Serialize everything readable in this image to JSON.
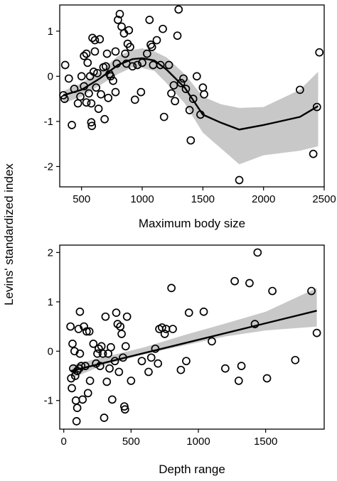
{
  "ylabel_shared": "Levins' standardized index",
  "chart_data": [
    {
      "type": "scatter",
      "xlabel": "Maximum body size",
      "ylabel": "Levins' standardized index",
      "xlim": [
        320,
        2500
      ],
      "ylim": [
        -2.45,
        1.58
      ],
      "xticks": [
        500,
        1000,
        1500,
        2000,
        2500
      ],
      "yticks": [
        -2,
        -1,
        0,
        1
      ],
      "points": [
        [
          350,
          -0.42
        ],
        [
          360,
          -0.5
        ],
        [
          365,
          0.25
        ],
        [
          395,
          -0.05
        ],
        [
          420,
          -1.08
        ],
        [
          440,
          -0.28
        ],
        [
          470,
          -0.6
        ],
        [
          490,
          -0.45
        ],
        [
          500,
          0.0
        ],
        [
          520,
          -0.22
        ],
        [
          520,
          0.45
        ],
        [
          540,
          0.5
        ],
        [
          540,
          -0.58
        ],
        [
          550,
          0.3
        ],
        [
          560,
          -0.38
        ],
        [
          570,
          0.0
        ],
        [
          580,
          -0.6
        ],
        [
          580,
          -1.02
        ],
        [
          585,
          -1.1
        ],
        [
          590,
          0.85
        ],
        [
          600,
          0.1
        ],
        [
          610,
          0.8
        ],
        [
          610,
          0.55
        ],
        [
          620,
          -0.25
        ],
        [
          630,
          0.07
        ],
        [
          640,
          -0.72
        ],
        [
          650,
          0.82
        ],
        [
          660,
          -0.4
        ],
        [
          680,
          0.2
        ],
        [
          690,
          -0.95
        ],
        [
          700,
          0.22
        ],
        [
          710,
          0.5
        ],
        [
          720,
          -0.48
        ],
        [
          730,
          0.05
        ],
        [
          740,
          0.0
        ],
        [
          760,
          -0.1
        ],
        [
          780,
          0.55
        ],
        [
          780,
          -0.35
        ],
        [
          790,
          0.28
        ],
        [
          800,
          1.25
        ],
        [
          815,
          1.38
        ],
        [
          830,
          1.1
        ],
        [
          850,
          0.95
        ],
        [
          860,
          0.5
        ],
        [
          870,
          0.28
        ],
        [
          880,
          0.72
        ],
        [
          890,
          1.02
        ],
        [
          900,
          0.65
        ],
        [
          920,
          0.22
        ],
        [
          940,
          -0.52
        ],
        [
          960,
          0.25
        ],
        [
          990,
          -0.35
        ],
        [
          1000,
          0.3
        ],
        [
          1040,
          0.5
        ],
        [
          1060,
          1.25
        ],
        [
          1070,
          0.7
        ],
        [
          1080,
          0.65
        ],
        [
          1090,
          0.25
        ],
        [
          1120,
          0.8
        ],
        [
          1150,
          0.25
        ],
        [
          1170,
          1.05
        ],
        [
          1180,
          -0.9
        ],
        [
          1220,
          0.25
        ],
        [
          1240,
          -0.38
        ],
        [
          1260,
          -0.2
        ],
        [
          1270,
          -0.55
        ],
        [
          1290,
          0.9
        ],
        [
          1300,
          1.48
        ],
        [
          1320,
          -0.15
        ],
        [
          1340,
          -0.05
        ],
        [
          1360,
          -0.28
        ],
        [
          1390,
          -0.75
        ],
        [
          1400,
          -1.42
        ],
        [
          1420,
          -0.5
        ],
        [
          1450,
          0.0
        ],
        [
          1480,
          -0.85
        ],
        [
          1500,
          -0.25
        ],
        [
          1510,
          -0.4
        ],
        [
          1800,
          -2.3
        ],
        [
          2300,
          -0.3
        ],
        [
          2410,
          -1.72
        ],
        [
          2440,
          -0.68
        ],
        [
          2460,
          0.53
        ]
      ],
      "trend": [
        [
          350,
          -0.42
        ],
        [
          500,
          -0.3
        ],
        [
          650,
          -0.05
        ],
        [
          800,
          0.25
        ],
        [
          920,
          0.38
        ],
        [
          1000,
          0.4
        ],
        [
          1100,
          0.35
        ],
        [
          1200,
          0.15
        ],
        [
          1350,
          -0.25
        ],
        [
          1500,
          -0.85
        ],
        [
          1650,
          -1.03
        ],
        [
          1800,
          -1.18
        ],
        [
          2000,
          -1.08
        ],
        [
          2300,
          -0.9
        ],
        [
          2450,
          -0.66
        ]
      ],
      "band_upper": [
        [
          350,
          -0.33
        ],
        [
          500,
          -0.15
        ],
        [
          650,
          0.1
        ],
        [
          800,
          0.45
        ],
        [
          920,
          0.58
        ],
        [
          1000,
          0.62
        ],
        [
          1100,
          0.55
        ],
        [
          1200,
          0.42
        ],
        [
          1350,
          0.05
        ],
        [
          1500,
          -0.45
        ],
        [
          1650,
          -0.62
        ],
        [
          1800,
          -0.7
        ],
        [
          2000,
          -0.68
        ],
        [
          2300,
          -0.3
        ],
        [
          2450,
          0.1
        ]
      ],
      "band_lower": [
        [
          350,
          -0.6
        ],
        [
          500,
          -0.45
        ],
        [
          650,
          -0.2
        ],
        [
          800,
          0.05
        ],
        [
          920,
          0.2
        ],
        [
          1000,
          0.18
        ],
        [
          1100,
          0.12
        ],
        [
          1200,
          -0.15
        ],
        [
          1350,
          -0.6
        ],
        [
          1500,
          -1.25
        ],
        [
          1650,
          -1.6
        ],
        [
          1800,
          -1.95
        ],
        [
          2000,
          -1.75
        ],
        [
          2300,
          -1.65
        ],
        [
          2450,
          -1.55
        ]
      ]
    },
    {
      "type": "scatter",
      "xlabel": "Depth range",
      "ylabel": "Levins' standardized index",
      "xlim": [
        -30,
        1935
      ],
      "ylim": [
        -1.58,
        2.15
      ],
      "xticks": [
        0,
        500,
        1000,
        1500
      ],
      "yticks": [
        -1,
        0,
        1,
        2
      ],
      "points": [
        [
          50,
          0.5
        ],
        [
          55,
          -0.55
        ],
        [
          60,
          -0.75
        ],
        [
          65,
          0.15
        ],
        [
          70,
          -0.35
        ],
        [
          80,
          0.0
        ],
        [
          85,
          -0.5
        ],
        [
          90,
          -1.0
        ],
        [
          95,
          -1.42
        ],
        [
          100,
          -0.4
        ],
        [
          100,
          -1.15
        ],
        [
          110,
          0.45
        ],
        [
          115,
          -0.35
        ],
        [
          120,
          0.8
        ],
        [
          120,
          -0.05
        ],
        [
          130,
          -0.3
        ],
        [
          140,
          -0.98
        ],
        [
          150,
          0.5
        ],
        [
          160,
          -0.3
        ],
        [
          170,
          0.4
        ],
        [
          180,
          -0.85
        ],
        [
          190,
          0.4
        ],
        [
          195,
          -0.6
        ],
        [
          220,
          0.15
        ],
        [
          240,
          -0.25
        ],
        [
          250,
          -0.05
        ],
        [
          260,
          0.05
        ],
        [
          270,
          -0.3
        ],
        [
          280,
          0.1
        ],
        [
          290,
          -0.05
        ],
        [
          300,
          -1.35
        ],
        [
          310,
          0.7
        ],
        [
          320,
          -0.62
        ],
        [
          330,
          -0.05
        ],
        [
          340,
          -0.35
        ],
        [
          350,
          0.08
        ],
        [
          360,
          -0.98
        ],
        [
          380,
          -0.2
        ],
        [
          390,
          0.78
        ],
        [
          400,
          0.55
        ],
        [
          410,
          -0.42
        ],
        [
          420,
          0.5
        ],
        [
          430,
          0.35
        ],
        [
          440,
          -0.13
        ],
        [
          450,
          -1.12
        ],
        [
          455,
          -1.18
        ],
        [
          460,
          0.1
        ],
        [
          470,
          0.7
        ],
        [
          500,
          -0.6
        ],
        [
          580,
          -0.2
        ],
        [
          630,
          -0.42
        ],
        [
          650,
          -0.13
        ],
        [
          680,
          0.05
        ],
        [
          700,
          -0.25
        ],
        [
          710,
          0.45
        ],
        [
          730,
          0.48
        ],
        [
          750,
          0.35
        ],
        [
          760,
          0.45
        ],
        [
          800,
          1.28
        ],
        [
          810,
          0.45
        ],
        [
          870,
          -0.38
        ],
        [
          910,
          -0.2
        ],
        [
          930,
          0.78
        ],
        [
          1040,
          0.8
        ],
        [
          1100,
          0.2
        ],
        [
          1200,
          -0.35
        ],
        [
          1270,
          1.42
        ],
        [
          1300,
          -0.6
        ],
        [
          1320,
          -0.3
        ],
        [
          1380,
          1.38
        ],
        [
          1420,
          0.55
        ],
        [
          1440,
          2.0
        ],
        [
          1510,
          -0.55
        ],
        [
          1550,
          1.22
        ],
        [
          1720,
          -0.18
        ],
        [
          1840,
          1.22
        ],
        [
          1880,
          0.37
        ]
      ],
      "trend": [
        [
          55,
          -0.4
        ],
        [
          1880,
          0.82
        ]
      ],
      "band_upper": [
        [
          55,
          -0.28
        ],
        [
          300,
          -0.12
        ],
        [
          600,
          0.08
        ],
        [
          900,
          0.33
        ],
        [
          1200,
          0.56
        ],
        [
          1500,
          0.8
        ],
        [
          1880,
          1.28
        ]
      ],
      "band_lower": [
        [
          55,
          -0.55
        ],
        [
          300,
          -0.28
        ],
        [
          600,
          -0.06
        ],
        [
          900,
          0.12
        ],
        [
          1200,
          0.3
        ],
        [
          1500,
          0.42
        ],
        [
          1880,
          0.5
        ]
      ]
    }
  ]
}
